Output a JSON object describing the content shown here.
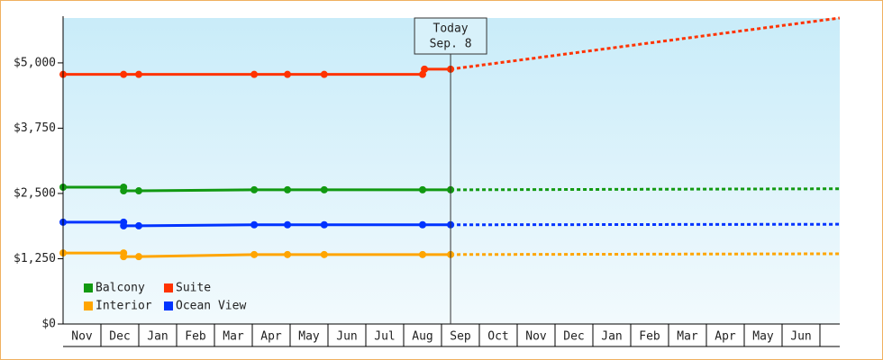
{
  "chart_data": {
    "type": "line",
    "categories": [
      "Nov",
      "Dec",
      "Jan",
      "Feb",
      "Mar",
      "Apr",
      "May",
      "Jun",
      "Jul",
      "Aug",
      "Sep",
      "Oct",
      "Nov",
      "Dec",
      "Jan",
      "Feb",
      "Mar",
      "Apr",
      "May",
      "Jun"
    ],
    "xlim": [
      0,
      20.52
    ],
    "ylim": [
      0,
      5860
    ],
    "yticks": [
      {
        "value": 0,
        "label": "$0"
      },
      {
        "value": 1250,
        "label": "$1,250"
      },
      {
        "value": 2500,
        "label": "$2,500"
      },
      {
        "value": 3750,
        "label": "$3,750"
      },
      {
        "value": 5000,
        "label": "$5,000"
      }
    ],
    "today": {
      "x": 10.24,
      "label": "Today",
      "date": "Sep. 8"
    },
    "legend": "lower left",
    "series": [
      {
        "name": "Balcony",
        "color": "#119911",
        "x": [
          0,
          1.6,
          1.6,
          2.0,
          5.05,
          5.93,
          6.9,
          9.5,
          10.24,
          20.52
        ],
        "values": [
          2620,
          2620,
          2550,
          2550,
          2570,
          2570,
          2570,
          2570,
          2570,
          2590
        ]
      },
      {
        "name": "Suite",
        "color": "#ff3300",
        "x": [
          0,
          1.6,
          2.0,
          5.05,
          5.93,
          6.9,
          9.5,
          9.55,
          10.24,
          20.52
        ],
        "values": [
          4780,
          4780,
          4780,
          4780,
          4780,
          4780,
          4780,
          4880,
          4880,
          5860
        ]
      },
      {
        "name": "Interior",
        "color": "#ffa500",
        "x": [
          0,
          1.6,
          1.6,
          2.0,
          5.05,
          5.93,
          6.9,
          9.5,
          10.24,
          20.52
        ],
        "values": [
          1360,
          1360,
          1290,
          1290,
          1330,
          1330,
          1330,
          1330,
          1330,
          1345
        ]
      },
      {
        "name": "Ocean View",
        "color": "#0033ff",
        "x": [
          0,
          1.6,
          1.6,
          2.0,
          5.05,
          5.93,
          6.9,
          9.5,
          10.24,
          20.52
        ],
        "values": [
          1950,
          1950,
          1880,
          1880,
          1900,
          1900,
          1900,
          1900,
          1900,
          1910
        ]
      }
    ]
  }
}
